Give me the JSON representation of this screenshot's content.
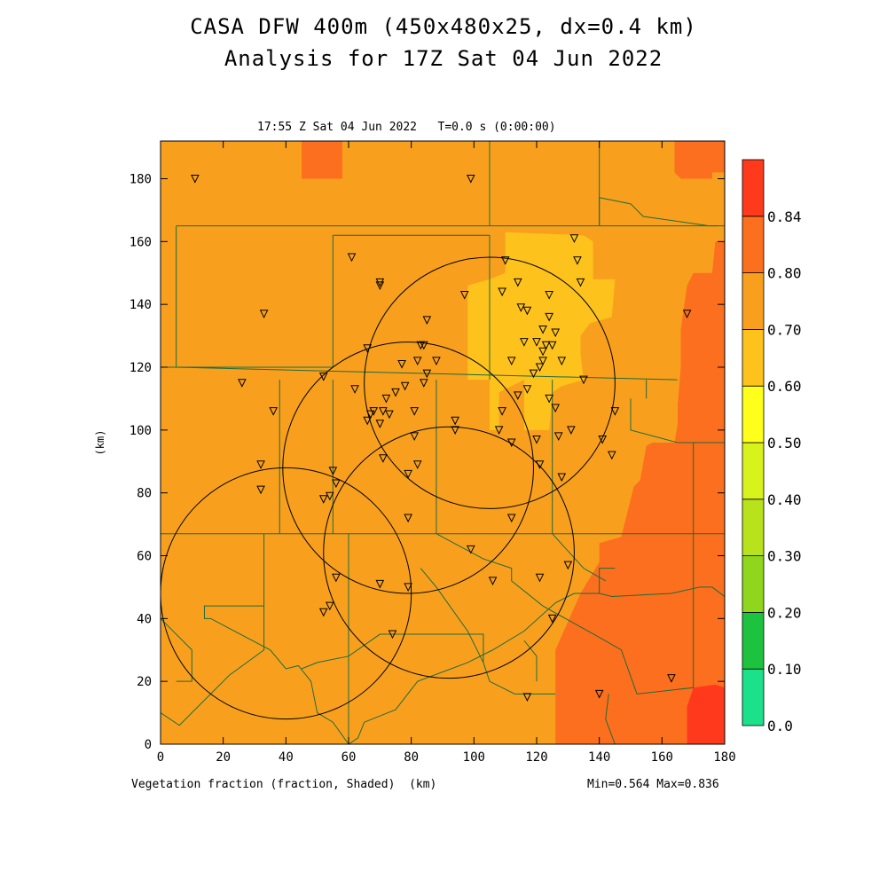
{
  "title_line1": "CASA DFW 400m (450x480x25, dx=0.4 km)",
  "title_line2": "Analysis for 17Z Sat 04 Jun 2022",
  "subtitle": "17:55 Z Sat 04 Jun 2022   T=0.0 s (0:00:00)",
  "footer_variable": "Vegetation fraction (fraction, Shaded)  (km)",
  "footer_minmax": "Min=0.564 Max=0.836",
  "colors": {
    "background": "#ffffff",
    "county_lines": "#1f6b3a",
    "radar_rings": "#000000"
  },
  "chart_data": {
    "type": "heatmap",
    "xlabel": "(km)",
    "ylabel": "(km)",
    "xlim": [
      0,
      180
    ],
    "ylim": [
      0,
      192
    ],
    "x_ticks": [
      0,
      20,
      40,
      60,
      80,
      100,
      120,
      140,
      160,
      180
    ],
    "y_ticks": [
      0,
      20,
      40,
      60,
      80,
      100,
      120,
      140,
      160,
      180
    ],
    "colorbar": {
      "levels": [
        0.0,
        0.1,
        0.2,
        0.3,
        0.4,
        0.5,
        0.6,
        0.7,
        0.8,
        0.84
      ],
      "labels": [
        "0.0",
        "0.10",
        "0.20",
        "0.30",
        "0.40",
        "0.50",
        "0.60",
        "0.70",
        "0.80",
        "0.84"
      ],
      "colors": [
        "#1de08a",
        "#1dc23e",
        "#8fd61c",
        "#b8e21c",
        "#d8f21c",
        "#ffff1c",
        "#fdc21c",
        "#f8a01e",
        "#fc6f1e",
        "#ff3a1c"
      ]
    },
    "regions": [
      {
        "level_color": "#f8a01e",
        "polygon": [
          [
            0,
            0
          ],
          [
            180,
            0
          ],
          [
            180,
            192
          ],
          [
            0,
            192
          ]
        ]
      },
      {
        "level_color": "#fc6f1e",
        "polygon": [
          [
            126,
            0
          ],
          [
            126,
            30
          ],
          [
            134,
            48
          ],
          [
            140,
            58
          ],
          [
            140,
            64
          ],
          [
            147,
            66
          ],
          [
            151,
            82
          ],
          [
            153,
            84
          ],
          [
            155,
            95
          ],
          [
            157,
            96
          ],
          [
            164,
            96
          ],
          [
            165,
            102
          ],
          [
            165,
            108
          ],
          [
            166,
            120
          ],
          [
            166,
            132
          ],
          [
            168,
            146
          ],
          [
            170,
            150
          ],
          [
            176,
            150
          ],
          [
            177,
            160
          ],
          [
            180,
            160
          ],
          [
            180,
            0
          ]
        ]
      },
      {
        "level_color": "#fc6f1e",
        "polygon": [
          [
            164,
            182
          ],
          [
            164,
            192
          ],
          [
            180,
            192
          ],
          [
            180,
            182
          ],
          [
            176,
            182
          ],
          [
            176,
            180
          ],
          [
            166,
            180
          ]
        ]
      },
      {
        "level_color": "#fc6f1e",
        "polygon": [
          [
            45,
            192
          ],
          [
            45,
            180
          ],
          [
            58,
            180
          ],
          [
            58,
            192
          ]
        ]
      },
      {
        "level_color": "#ff3a1c",
        "polygon": [
          [
            168,
            0
          ],
          [
            168,
            12
          ],
          [
            170,
            18
          ],
          [
            177,
            19
          ],
          [
            180,
            18
          ],
          [
            180,
            0
          ]
        ]
      },
      {
        "level_color": "#fdc21c",
        "polygon": [
          [
            105,
            100
          ],
          [
            108,
            100
          ],
          [
            108,
            112
          ],
          [
            116,
            116
          ],
          [
            116,
            100
          ],
          [
            124,
            100
          ],
          [
            125,
            112
          ],
          [
            128,
            114
          ],
          [
            135,
            116
          ],
          [
            134,
            124
          ],
          [
            134,
            130
          ],
          [
            137,
            134
          ],
          [
            144,
            136
          ],
          [
            145,
            148
          ],
          [
            138,
            148
          ],
          [
            138,
            160
          ],
          [
            135,
            162
          ],
          [
            110,
            163
          ],
          [
            110,
            150
          ],
          [
            105,
            148
          ],
          [
            98,
            146
          ],
          [
            98,
            116
          ],
          [
            105,
            116
          ]
        ]
      }
    ],
    "radar_rings": [
      {
        "name": "ring-southwest",
        "cx": 40,
        "cy": 48,
        "r": 40
      },
      {
        "name": "ring-center-west",
        "cx": 79,
        "cy": 88,
        "r": 40
      },
      {
        "name": "ring-center-south",
        "cx": 92,
        "cy": 61,
        "r": 40
      },
      {
        "name": "ring-northeast",
        "cx": 105,
        "cy": 115,
        "r": 40
      }
    ],
    "counties": [
      [
        [
          0,
          67
        ],
        [
          180,
          67
        ]
      ],
      [
        [
          5,
          165
        ],
        [
          180,
          165
        ]
      ],
      [
        [
          5,
          165
        ],
        [
          5,
          120
        ],
        [
          0,
          120
        ]
      ],
      [
        [
          0,
          120
        ],
        [
          55,
          120
        ]
      ],
      [
        [
          5,
          120
        ],
        [
          165,
          116
        ]
      ],
      [
        [
          38,
          116
        ],
        [
          38,
          67
        ]
      ],
      [
        [
          55,
          116
        ],
        [
          55,
          67
        ]
      ],
      [
        [
          55,
          162
        ],
        [
          55,
          120
        ]
      ],
      [
        [
          55,
          162
        ],
        [
          105,
          162
        ]
      ],
      [
        [
          105,
          162
        ],
        [
          105,
          116
        ]
      ],
      [
        [
          140,
          165
        ],
        [
          140,
          174
        ]
      ],
      [
        [
          140,
          174
        ],
        [
          150,
          172
        ],
        [
          154,
          168
        ],
        [
          175,
          165
        ],
        [
          178,
          165
        ]
      ],
      [
        [
          105,
          192
        ],
        [
          105,
          165
        ]
      ],
      [
        [
          140,
          192
        ],
        [
          140,
          165
        ]
      ],
      [
        [
          150,
          110
        ],
        [
          150,
          100
        ],
        [
          165,
          96
        ],
        [
          170,
          96
        ],
        [
          170,
          96
        ],
        [
          180,
          96
        ]
      ],
      [
        [
          155,
          116
        ],
        [
          155,
          110
        ]
      ],
      [
        [
          125,
          116
        ],
        [
          125,
          67
        ],
        [
          135,
          56
        ],
        [
          142,
          52
        ]
      ],
      [
        [
          88,
          116
        ],
        [
          88,
          67
        ],
        [
          103,
          59
        ],
        [
          112,
          56
        ],
        [
          112,
          52
        ],
        [
          122,
          44
        ],
        [
          140,
          34
        ],
        [
          147,
          30
        ],
        [
          152,
          16
        ],
        [
          170,
          18
        ],
        [
          170,
          96
        ]
      ],
      [
        [
          60,
          67
        ],
        [
          60,
          0
        ]
      ],
      [
        [
          60,
          0
        ],
        [
          55,
          7
        ],
        [
          50,
          10
        ],
        [
          48,
          20
        ],
        [
          44,
          25
        ],
        [
          40,
          24
        ],
        [
          35,
          30
        ],
        [
          16,
          40
        ],
        [
          14,
          40
        ],
        [
          14,
          44
        ],
        [
          25,
          44
        ],
        [
          33,
          44
        ],
        [
          33,
          67
        ]
      ],
      [
        [
          33,
          44
        ],
        [
          33,
          30
        ],
        [
          22,
          22
        ],
        [
          6,
          6
        ],
        [
          0,
          10
        ]
      ],
      [
        [
          60,
          0
        ],
        [
          63,
          2
        ],
        [
          65,
          7
        ],
        [
          75,
          11
        ],
        [
          82,
          20
        ],
        [
          98,
          26
        ],
        [
          106,
          30
        ],
        [
          116,
          36
        ],
        [
          126,
          45
        ],
        [
          132,
          48
        ],
        [
          140,
          48
        ],
        [
          140,
          56
        ],
        [
          145,
          56
        ]
      ],
      [
        [
          83,
          35
        ],
        [
          103,
          35
        ],
        [
          103,
          26
        ]
      ],
      [
        [
          83,
          35
        ],
        [
          70,
          35
        ],
        [
          60,
          28
        ],
        [
          50,
          26
        ],
        [
          45,
          24
        ]
      ],
      [
        [
          103,
          26
        ],
        [
          105,
          20
        ],
        [
          113,
          16
        ],
        [
          126,
          16
        ]
      ],
      [
        [
          103,
          26
        ],
        [
          98,
          36
        ],
        [
          88,
          50
        ],
        [
          83,
          56
        ]
      ],
      [
        [
          140,
          48
        ],
        [
          144,
          47
        ],
        [
          163,
          48
        ],
        [
          172,
          50
        ],
        [
          176,
          50
        ],
        [
          180,
          47
        ]
      ],
      [
        [
          116,
          33
        ],
        [
          120,
          28
        ],
        [
          120,
          20
        ]
      ],
      [
        [
          143,
          16
        ],
        [
          142,
          8
        ],
        [
          145,
          0
        ]
      ],
      [
        [
          0,
          40
        ],
        [
          5,
          35
        ],
        [
          10,
          30
        ],
        [
          10,
          20
        ],
        [
          5,
          20
        ]
      ]
    ],
    "stations": [
      [
        11,
        180
      ],
      [
        99,
        180
      ],
      [
        61,
        155
      ],
      [
        70,
        147
      ],
      [
        70,
        146
      ],
      [
        97,
        143
      ],
      [
        109,
        144
      ],
      [
        110,
        154
      ],
      [
        114,
        147
      ],
      [
        115,
        139
      ],
      [
        117,
        138
      ],
      [
        120,
        128
      ],
      [
        122,
        132
      ],
      [
        124,
        136
      ],
      [
        126,
        131
      ],
      [
        125,
        127
      ],
      [
        123,
        127
      ],
      [
        122,
        125
      ],
      [
        122,
        122
      ],
      [
        121,
        120
      ],
      [
        119,
        118
      ],
      [
        116,
        128
      ],
      [
        112,
        122
      ],
      [
        128,
        122
      ],
      [
        132,
        161
      ],
      [
        133,
        154
      ],
      [
        134,
        147
      ],
      [
        124,
        143
      ],
      [
        33,
        137
      ],
      [
        66,
        126
      ],
      [
        77,
        121
      ],
      [
        82,
        122
      ],
      [
        83,
        127
      ],
      [
        84,
        127
      ],
      [
        85,
        135
      ],
      [
        88,
        122
      ],
      [
        84,
        115
      ],
      [
        85,
        118
      ],
      [
        78,
        114
      ],
      [
        75,
        112
      ],
      [
        72,
        110
      ],
      [
        66,
        103
      ],
      [
        67,
        105
      ],
      [
        68,
        106
      ],
      [
        70,
        102
      ],
      [
        71,
        106
      ],
      [
        73,
        105
      ],
      [
        81,
        106
      ],
      [
        26,
        115
      ],
      [
        36,
        106
      ],
      [
        52,
        117
      ],
      [
        62,
        113
      ],
      [
        32,
        89
      ],
      [
        32,
        81
      ],
      [
        55,
        87
      ],
      [
        56,
        83
      ],
      [
        54,
        79
      ],
      [
        52,
        78
      ],
      [
        71,
        91
      ],
      [
        79,
        86
      ],
      [
        81,
        98
      ],
      [
        82,
        89
      ],
      [
        94,
        103
      ],
      [
        94,
        100
      ],
      [
        108,
        100
      ],
      [
        109,
        106
      ],
      [
        114,
        111
      ],
      [
        117,
        113
      ],
      [
        120,
        97
      ],
      [
        121,
        89
      ],
      [
        124,
        110
      ],
      [
        126,
        107
      ],
      [
        127,
        98
      ],
      [
        128,
        85
      ],
      [
        131,
        100
      ],
      [
        135,
        116
      ],
      [
        141,
        97
      ],
      [
        144,
        92
      ],
      [
        145,
        106
      ],
      [
        112,
        96
      ],
      [
        112,
        72
      ],
      [
        79,
        72
      ],
      [
        99,
        62
      ],
      [
        56,
        53
      ],
      [
        70,
        51
      ],
      [
        79,
        50
      ],
      [
        52,
        42
      ],
      [
        54,
        44
      ],
      [
        74,
        35
      ],
      [
        106,
        52
      ],
      [
        121,
        53
      ],
      [
        130,
        57
      ],
      [
        125,
        40
      ],
      [
        117,
        15
      ],
      [
        140,
        16
      ],
      [
        163,
        21
      ],
      [
        168,
        137
      ]
    ]
  }
}
